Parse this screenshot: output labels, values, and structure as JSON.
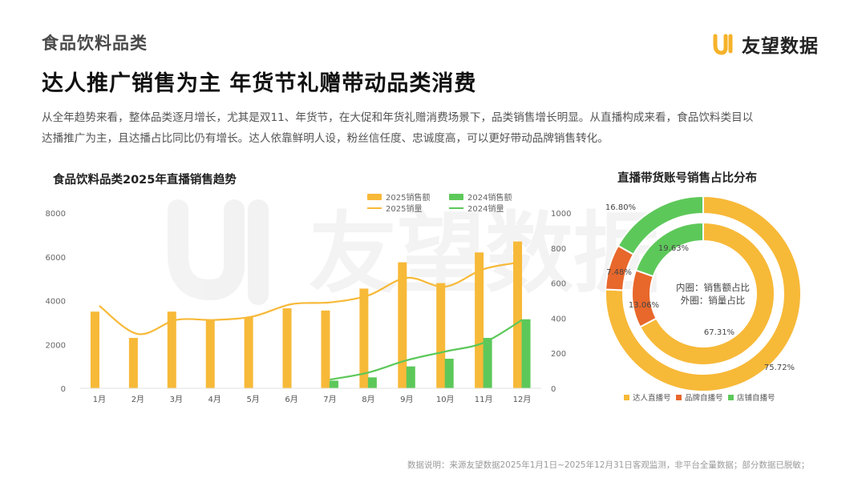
{
  "header": {
    "category": "食品饮料品类",
    "headline": "达人推广销售为主 年货节礼赠带动品类消费",
    "brand": "友望数据",
    "intro_line1": "从全年趋势来看，整体品类逐月增长，尤其是双11、年货节，在大促和年货礼赠消费场景下，品类销售增长明显。从直播构成来看，食品饮料类目以",
    "intro_line2": "达播推广为主，且达播占比同比仍有增长。达人依靠鲜明人设，粉丝信任度、忠诚度高，可以更好带动品牌销售转化。"
  },
  "watermark": "友望数据",
  "footnote": "数据说明：来源友望数据2025年1月1日~2025年12月31日客观监测，非平台全量数据；部分数据已脱敏；",
  "colors": {
    "orange": "#F7B938",
    "green": "#5DC85A",
    "red": "#E8672B",
    "brand": "#F5B22A"
  },
  "chart_data": [
    {
      "type": "bar",
      "title": "食品饮料品类2025年直播销售趋势",
      "categories": [
        "1月",
        "2月",
        "3月",
        "4月",
        "5月",
        "6月",
        "7月",
        "8月",
        "9月",
        "10月",
        "11月",
        "12月"
      ],
      "y_left": {
        "range": [
          0,
          8000
        ],
        "ticks": [
          0,
          2000,
          4000,
          6000,
          8000
        ]
      },
      "y_right": {
        "range": [
          0,
          1000
        ],
        "ticks": [
          0,
          200,
          400,
          600,
          800,
          1000
        ]
      },
      "series": [
        {
          "name": "2025销售额",
          "kind": "bar",
          "axis": "left",
          "color": "#F7B938",
          "values": [
            3500,
            2300,
            3500,
            3100,
            3250,
            3650,
            3550,
            4550,
            5750,
            4800,
            6200,
            6700
          ]
        },
        {
          "name": "2024销售额",
          "kind": "bar",
          "axis": "left",
          "color": "#5DC85A",
          "values": [
            null,
            null,
            null,
            null,
            null,
            null,
            350,
            500,
            1000,
            1350,
            2300,
            3150
          ]
        },
        {
          "name": "2025销量",
          "kind": "line",
          "axis": "right",
          "color": "#F7B938",
          "values": [
            470,
            310,
            390,
            390,
            410,
            480,
            490,
            530,
            630,
            580,
            680,
            720
          ]
        },
        {
          "name": "2024销量",
          "kind": "line",
          "axis": "right",
          "color": "#5DC85A",
          "values": [
            null,
            null,
            null,
            null,
            null,
            null,
            50,
            90,
            160,
            210,
            260,
            390
          ]
        }
      ],
      "legend_position": "top-right"
    },
    {
      "type": "pie",
      "title": "直播带货账号销售占比分布",
      "center_note": [
        "内圈：销售额占比",
        "外圈：销量占比"
      ],
      "categories": [
        "达人直播号",
        "品牌自播号",
        "店铺自播号"
      ],
      "colors": [
        "#F7B938",
        "#E8672B",
        "#5DC85A"
      ],
      "series": [
        {
          "name": "内圈",
          "values": [
            67.31,
            13.06,
            19.63
          ]
        },
        {
          "name": "外圈",
          "values": [
            75.72,
            7.48,
            16.8
          ]
        }
      ],
      "labels": {
        "inner": [
          "67.31%",
          "13.06%",
          "19.63%"
        ],
        "outer": [
          "75.72%",
          "7.48%",
          "16.80%"
        ]
      },
      "legend_position": "bottom"
    }
  ]
}
